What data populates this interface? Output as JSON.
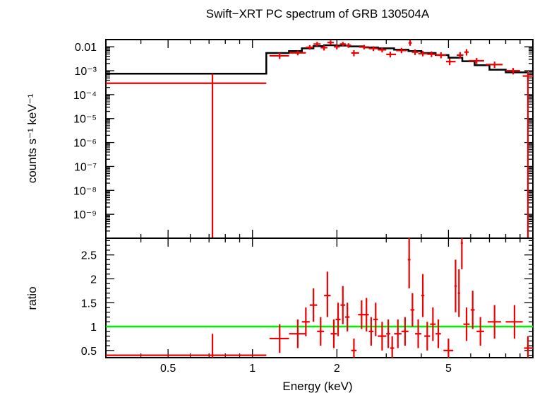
{
  "chart_data": {
    "type": "spectrum",
    "title": "Swift−XRT PC spectrum of GRB 130504A",
    "xlabel": "Energy (keV)",
    "xscale": "log",
    "xlim": [
      0.3,
      10
    ],
    "x_ticks": [
      {
        "value": 0.5,
        "label": "0.5"
      },
      {
        "value": 1,
        "label": "1"
      },
      {
        "value": 2,
        "label": "2"
      },
      {
        "value": 5,
        "label": "5"
      }
    ],
    "top_panel": {
      "ylabel": "counts s⁻¹ keV⁻¹",
      "yscale": "log",
      "ylim": [
        1e-10,
        0.02
      ],
      "y_ticks": [
        {
          "value": 0.01,
          "label": "0.01"
        },
        {
          "value": 0.001,
          "label": "10⁻³"
        },
        {
          "value": 0.0001,
          "label": "10⁻⁴"
        },
        {
          "value": 1e-05,
          "label": "10⁻⁵"
        },
        {
          "value": 1e-06,
          "label": "10⁻⁶"
        },
        {
          "value": 1e-07,
          "label": "10⁻⁷"
        },
        {
          "value": 1e-08,
          "label": "10⁻⁸"
        },
        {
          "value": 1e-09,
          "label": "10⁻⁹"
        }
      ],
      "model": {
        "name": "model",
        "color": "#000000",
        "bins": [
          {
            "x0": 0.3,
            "x1": 1.12,
            "y": 0.00075
          },
          {
            "x0": 1.12,
            "x1": 1.35,
            "y": 0.0055
          },
          {
            "x0": 1.35,
            "x1": 1.5,
            "y": 0.0066
          },
          {
            "x0": 1.5,
            "x1": 1.65,
            "y": 0.0086
          },
          {
            "x0": 1.65,
            "x1": 1.8,
            "y": 0.0106
          },
          {
            "x0": 1.8,
            "x1": 2.0,
            "y": 0.0116
          },
          {
            "x0": 2.0,
            "x1": 2.2,
            "y": 0.0112
          },
          {
            "x0": 2.2,
            "x1": 2.5,
            "y": 0.0104
          },
          {
            "x0": 2.5,
            "x1": 2.8,
            "y": 0.0094
          },
          {
            "x0": 2.8,
            "x1": 3.2,
            "y": 0.0086
          },
          {
            "x0": 3.2,
            "x1": 3.6,
            "y": 0.0076
          },
          {
            "x0": 3.6,
            "x1": 4.0,
            "y": 0.0066
          },
          {
            "x0": 4.0,
            "x1": 4.5,
            "y": 0.0055
          },
          {
            "x0": 4.5,
            "x1": 5.0,
            "y": 0.0045
          },
          {
            "x0": 5.0,
            "x1": 5.6,
            "y": 0.0035
          },
          {
            "x0": 5.6,
            "x1": 6.2,
            "y": 0.0025
          },
          {
            "x0": 6.2,
            "x1": 7.0,
            "y": 0.0017
          },
          {
            "x0": 7.0,
            "x1": 8.0,
            "y": 0.0011
          },
          {
            "x0": 8.0,
            "x1": 9.6,
            "y": 0.00085
          }
        ]
      },
      "data": {
        "name": "data",
        "color": "#ee0000",
        "points": [
          {
            "x": 0.72,
            "xlo": 0.3,
            "xhi": 1.12,
            "y": 0.0003,
            "ylo": 1e-10,
            "yhi": 0.00075
          },
          {
            "x": 1.25,
            "xlo": 1.15,
            "xhi": 1.35,
            "y": 0.0042,
            "ylo": 0.0031,
            "yhi": 0.0055
          },
          {
            "x": 1.45,
            "xlo": 1.35,
            "xhi": 1.55,
            "y": 0.0056,
            "ylo": 0.0044,
            "yhi": 0.007
          },
          {
            "x": 1.6,
            "xlo": 1.55,
            "xhi": 1.65,
            "y": 0.0095,
            "ylo": 0.0075,
            "yhi": 0.0118
          },
          {
            "x": 1.7,
            "xlo": 1.65,
            "xhi": 1.75,
            "y": 0.013,
            "ylo": 0.0105,
            "yhi": 0.016
          },
          {
            "x": 1.8,
            "xlo": 1.75,
            "xhi": 1.85,
            "y": 0.0092,
            "ylo": 0.007,
            "yhi": 0.0115
          },
          {
            "x": 1.9,
            "xlo": 1.85,
            "xhi": 1.95,
            "y": 0.015,
            "ylo": 0.012,
            "yhi": 0.0185
          },
          {
            "x": 2.0,
            "xlo": 1.95,
            "xhi": 2.05,
            "y": 0.01,
            "ylo": 0.0078,
            "yhi": 0.0125
          },
          {
            "x": 2.1,
            "xlo": 2.05,
            "xhi": 2.15,
            "y": 0.013,
            "ylo": 0.0105,
            "yhi": 0.016
          },
          {
            "x": 2.2,
            "xlo": 2.15,
            "xhi": 2.25,
            "y": 0.0115,
            "ylo": 0.009,
            "yhi": 0.014
          },
          {
            "x": 2.3,
            "xlo": 2.25,
            "xhi": 2.4,
            "y": 0.0055,
            "ylo": 0.004,
            "yhi": 0.0072
          },
          {
            "x": 2.5,
            "xlo": 2.4,
            "xhi": 2.6,
            "y": 0.0098,
            "ylo": 0.0078,
            "yhi": 0.012
          },
          {
            "x": 2.7,
            "xlo": 2.6,
            "xhi": 2.8,
            "y": 0.0085,
            "ylo": 0.0066,
            "yhi": 0.0105
          },
          {
            "x": 2.9,
            "xlo": 2.8,
            "xhi": 3.0,
            "y": 0.0075,
            "ylo": 0.0058,
            "yhi": 0.0095
          },
          {
            "x": 3.1,
            "xlo": 3.0,
            "xhi": 3.25,
            "y": 0.0048,
            "ylo": 0.0036,
            "yhi": 0.0062
          },
          {
            "x": 3.4,
            "xlo": 3.25,
            "xhi": 3.55,
            "y": 0.007,
            "ylo": 0.0054,
            "yhi": 0.009
          },
          {
            "x": 3.65,
            "xlo": 3.6,
            "xhi": 3.7,
            "y": 0.0145,
            "ylo": 0.011,
            "yhi": 0.019
          },
          {
            "x": 3.8,
            "xlo": 3.7,
            "xhi": 3.9,
            "y": 0.006,
            "ylo": 0.0045,
            "yhi": 0.0078
          },
          {
            "x": 4.05,
            "xlo": 3.9,
            "xhi": 4.2,
            "y": 0.0052,
            "ylo": 0.004,
            "yhi": 0.0068
          },
          {
            "x": 4.35,
            "xlo": 4.2,
            "xhi": 4.5,
            "y": 0.0049,
            "ylo": 0.0037,
            "yhi": 0.0064
          },
          {
            "x": 4.7,
            "xlo": 4.5,
            "xhi": 4.9,
            "y": 0.0045,
            "ylo": 0.0033,
            "yhi": 0.0059
          },
          {
            "x": 5.05,
            "xlo": 4.9,
            "xhi": 5.3,
            "y": 0.0024,
            "ylo": 0.0017,
            "yhi": 0.0032
          },
          {
            "x": 5.5,
            "xlo": 5.35,
            "xhi": 5.65,
            "y": 0.0045,
            "ylo": 0.0032,
            "yhi": 0.006
          },
          {
            "x": 5.8,
            "xlo": 5.7,
            "xhi": 5.9,
            "y": 0.006,
            "ylo": 0.0043,
            "yhi": 0.008
          },
          {
            "x": 6.3,
            "xlo": 5.9,
            "xhi": 6.7,
            "y": 0.0026,
            "ylo": 0.0019,
            "yhi": 0.0034
          },
          {
            "x": 7.3,
            "xlo": 6.8,
            "xhi": 7.8,
            "y": 0.0018,
            "ylo": 0.0013,
            "yhi": 0.0024
          },
          {
            "x": 8.5,
            "xlo": 8.0,
            "xhi": 9.0,
            "y": 0.001,
            "ylo": 0.0007,
            "yhi": 0.0013
          },
          {
            "x": 9.6,
            "xlo": 9.2,
            "xhi": 10.0,
            "y": 0.0006,
            "ylo": 1e-10,
            "yhi": 0.0009
          }
        ]
      }
    },
    "bottom_panel": {
      "ylabel": "ratio",
      "yscale": "linear",
      "ylim": [
        0.35,
        2.85
      ],
      "y_ticks": [
        {
          "value": 0.5,
          "label": "0.5"
        },
        {
          "value": 1,
          "label": "1"
        },
        {
          "value": 1.5,
          "label": "1.5"
        },
        {
          "value": 2,
          "label": "2"
        },
        {
          "value": 2.5,
          "label": "2.5"
        }
      ],
      "reference_line": {
        "y": 1,
        "color": "#00ee00"
      },
      "data": {
        "name": "ratio",
        "color": "#ee0000",
        "points": [
          {
            "x": 0.72,
            "xlo": 0.3,
            "xhi": 1.12,
            "y": 0.4,
            "ylo": 0.35,
            "yhi": 0.85
          },
          {
            "x": 1.25,
            "xlo": 1.15,
            "xhi": 1.35,
            "y": 0.75,
            "ylo": 0.45,
            "yhi": 1.05
          },
          {
            "x": 1.45,
            "xlo": 1.35,
            "xhi": 1.55,
            "y": 0.85,
            "ylo": 0.55,
            "yhi": 1.15
          },
          {
            "x": 1.55,
            "xlo": 1.5,
            "xhi": 1.6,
            "y": 1.1,
            "ylo": 0.8,
            "yhi": 1.4
          },
          {
            "x": 1.65,
            "xlo": 1.6,
            "xhi": 1.7,
            "y": 1.45,
            "ylo": 1.1,
            "yhi": 1.8
          },
          {
            "x": 1.75,
            "xlo": 1.7,
            "xhi": 1.8,
            "y": 0.9,
            "ylo": 0.6,
            "yhi": 1.2
          },
          {
            "x": 1.85,
            "xlo": 1.8,
            "xhi": 1.9,
            "y": 1.65,
            "ylo": 1.2,
            "yhi": 2.15
          },
          {
            "x": 1.95,
            "xlo": 1.9,
            "xhi": 2.0,
            "y": 0.85,
            "ylo": 0.55,
            "yhi": 1.15
          },
          {
            "x": 2.02,
            "xlo": 1.98,
            "xhi": 2.06,
            "y": 1.15,
            "ylo": 0.8,
            "yhi": 1.5
          },
          {
            "x": 2.1,
            "xlo": 2.06,
            "xhi": 2.14,
            "y": 1.45,
            "ylo": 1.05,
            "yhi": 1.85
          },
          {
            "x": 2.18,
            "xlo": 2.14,
            "xhi": 2.22,
            "y": 1.2,
            "ylo": 0.9,
            "yhi": 1.5
          },
          {
            "x": 2.3,
            "xlo": 2.25,
            "xhi": 2.35,
            "y": 0.5,
            "ylo": 0.35,
            "yhi": 0.75
          },
          {
            "x": 2.45,
            "xlo": 2.38,
            "xhi": 2.5,
            "y": 1.25,
            "ylo": 0.95,
            "yhi": 1.55
          },
          {
            "x": 2.55,
            "xlo": 2.5,
            "xhi": 2.6,
            "y": 1.25,
            "ylo": 0.9,
            "yhi": 1.6
          },
          {
            "x": 2.65,
            "xlo": 2.6,
            "xhi": 2.7,
            "y": 0.9,
            "ylo": 0.6,
            "yhi": 1.2
          },
          {
            "x": 2.75,
            "xlo": 2.7,
            "xhi": 2.8,
            "y": 1.15,
            "ylo": 0.8,
            "yhi": 1.5
          },
          {
            "x": 2.9,
            "xlo": 2.8,
            "xhi": 3.0,
            "y": 0.8,
            "ylo": 0.5,
            "yhi": 1.1
          },
          {
            "x": 3.05,
            "xlo": 3.0,
            "xhi": 3.1,
            "y": 0.85,
            "ylo": 0.55,
            "yhi": 1.15
          },
          {
            "x": 3.15,
            "xlo": 3.1,
            "xhi": 3.2,
            "y": 0.55,
            "ylo": 0.35,
            "yhi": 0.8
          },
          {
            "x": 3.3,
            "xlo": 3.2,
            "xhi": 3.4,
            "y": 0.85,
            "ylo": 0.55,
            "yhi": 1.15
          },
          {
            "x": 3.5,
            "xlo": 3.4,
            "xhi": 3.6,
            "y": 0.9,
            "ylo": 0.6,
            "yhi": 1.2
          },
          {
            "x": 3.62,
            "xlo": 3.58,
            "xhi": 3.66,
            "y": 2.4,
            "ylo": 1.8,
            "yhi": 2.85
          },
          {
            "x": 3.72,
            "xlo": 3.66,
            "xhi": 3.78,
            "y": 1.35,
            "ylo": 1.0,
            "yhi": 1.7
          },
          {
            "x": 3.9,
            "xlo": 3.8,
            "xhi": 4.0,
            "y": 0.85,
            "ylo": 0.55,
            "yhi": 1.15
          },
          {
            "x": 4.05,
            "xlo": 4.0,
            "xhi": 4.1,
            "y": 1.65,
            "ylo": 1.2,
            "yhi": 2.1
          },
          {
            "x": 4.2,
            "xlo": 4.1,
            "xhi": 4.3,
            "y": 0.8,
            "ylo": 0.5,
            "yhi": 1.1
          },
          {
            "x": 4.4,
            "xlo": 4.3,
            "xhi": 4.5,
            "y": 1.05,
            "ylo": 0.7,
            "yhi": 1.4
          },
          {
            "x": 4.6,
            "xlo": 4.5,
            "xhi": 4.7,
            "y": 0.85,
            "ylo": 0.55,
            "yhi": 1.15
          },
          {
            "x": 5.0,
            "xlo": 4.8,
            "xhi": 5.2,
            "y": 0.5,
            "ylo": 0.35,
            "yhi": 0.75
          },
          {
            "x": 5.3,
            "xlo": 5.25,
            "xhi": 5.35,
            "y": 1.85,
            "ylo": 1.3,
            "yhi": 2.4
          },
          {
            "x": 5.45,
            "xlo": 5.4,
            "xhi": 5.5,
            "y": 1.7,
            "ylo": 1.2,
            "yhi": 2.2
          },
          {
            "x": 5.58,
            "xlo": 5.53,
            "xhi": 5.63,
            "y": 2.75,
            "ylo": 2.2,
            "yhi": 2.85
          },
          {
            "x": 5.8,
            "xlo": 5.65,
            "xhi": 5.95,
            "y": 1.05,
            "ylo": 0.7,
            "yhi": 1.4
          },
          {
            "x": 6.1,
            "xlo": 6.0,
            "xhi": 6.2,
            "y": 1.35,
            "ylo": 0.95,
            "yhi": 1.75
          },
          {
            "x": 6.5,
            "xlo": 6.3,
            "xhi": 6.7,
            "y": 0.9,
            "ylo": 0.6,
            "yhi": 1.2
          },
          {
            "x": 7.3,
            "xlo": 6.9,
            "xhi": 7.7,
            "y": 1.1,
            "ylo": 0.75,
            "yhi": 1.45
          },
          {
            "x": 8.6,
            "xlo": 8.0,
            "xhi": 9.2,
            "y": 1.1,
            "ylo": 0.75,
            "yhi": 1.45
          },
          {
            "x": 9.6,
            "xlo": 9.3,
            "xhi": 10.0,
            "y": 0.55,
            "ylo": 0.35,
            "yhi": 0.8
          }
        ]
      }
    }
  }
}
